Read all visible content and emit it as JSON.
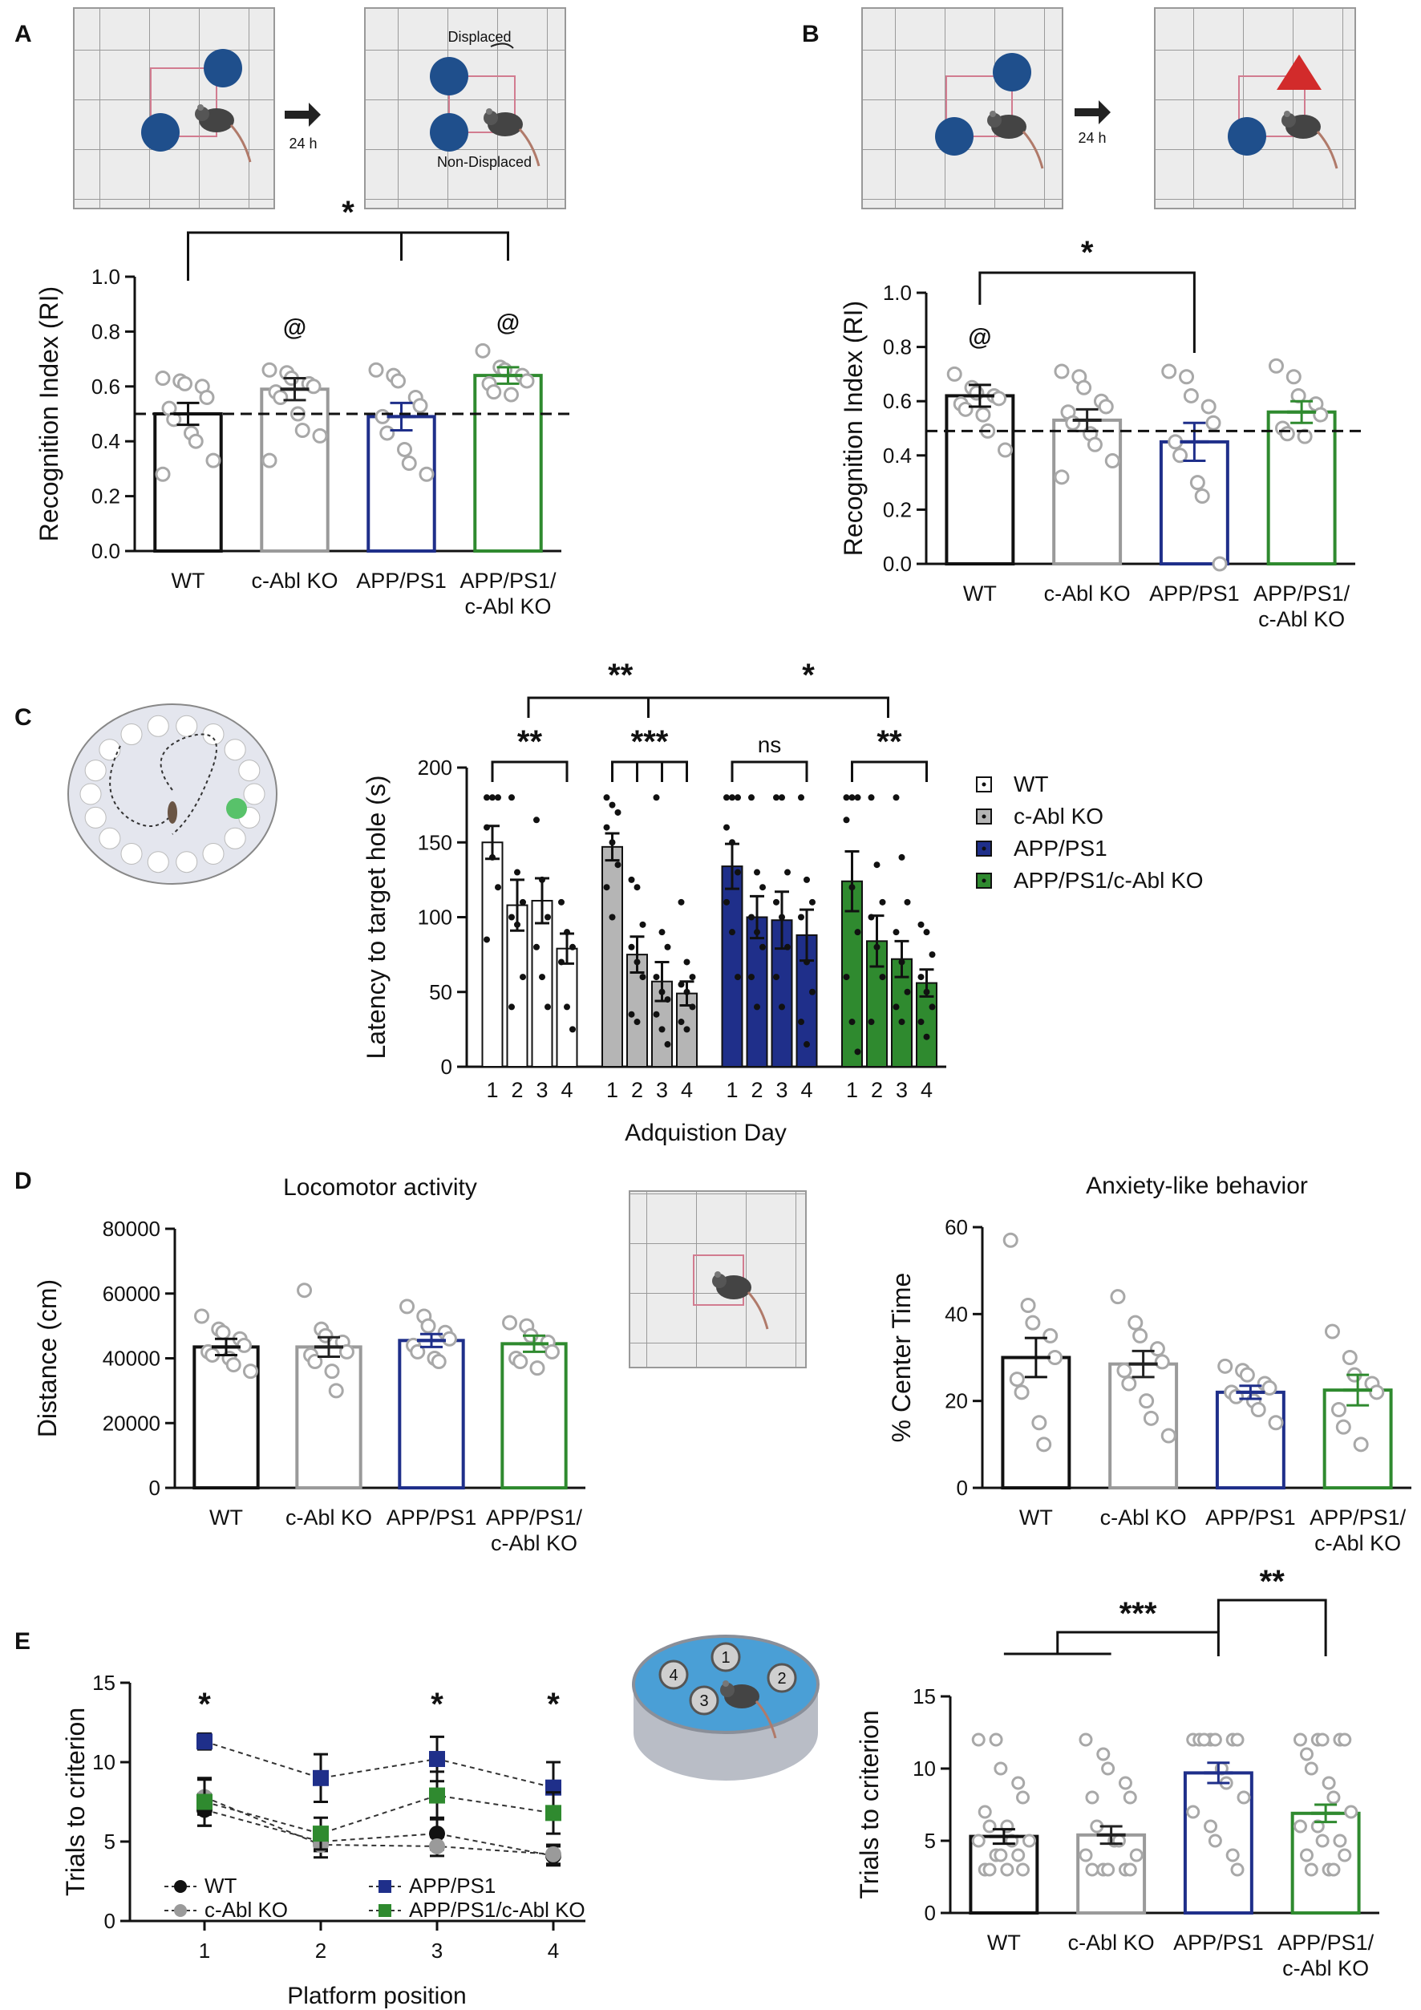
{
  "panels": {
    "a": "A",
    "b": "B",
    "c": "C",
    "d": "D",
    "e": "E"
  },
  "schematics": {
    "a_displaced": "Displaced",
    "a_nondisplaced": "Non-Displaced",
    "a_delay": "24 h",
    "b_delay": "24 h",
    "e_platforms": [
      "1",
      "2",
      "3",
      "4"
    ]
  },
  "chart_data": [
    {
      "id": "A",
      "type": "bar",
      "categories": [
        "WT",
        "c-Abl KO",
        "APP/PS1",
        "APP/PS1/\nc-Abl KO"
      ],
      "values": [
        0.5,
        0.59,
        0.49,
        0.64
      ],
      "sem": [
        0.04,
        0.04,
        0.05,
        0.03
      ],
      "colors": [
        "#111111",
        "#9a9a9a",
        "#1f2f8a",
        "#2f8a2f"
      ],
      "points": [
        [
          0.63,
          0.62,
          0.61,
          0.6,
          0.56,
          0.52,
          0.48,
          0.43,
          0.4,
          0.33,
          0.28
        ],
        [
          0.66,
          0.65,
          0.63,
          0.61,
          0.6,
          0.58,
          0.56,
          0.5,
          0.44,
          0.42,
          0.33
        ],
        [
          0.66,
          0.64,
          0.62,
          0.56,
          0.53,
          0.49,
          0.43,
          0.37,
          0.32,
          0.28
        ],
        [
          0.73,
          0.67,
          0.66,
          0.64,
          0.62,
          0.61,
          0.58,
          0.57
        ]
      ],
      "ylabel": "Recognition  Index (RI)",
      "ylim": [
        0,
        1.0
      ],
      "yticks": [
        "0.0",
        "0.2",
        "0.4",
        "0.6",
        "0.8",
        "1.0"
      ],
      "reference_line": 0.5,
      "annotations": {
        "star": "*",
        "at": "@"
      }
    },
    {
      "id": "B",
      "type": "bar",
      "categories": [
        "WT",
        "c-Abl KO",
        "APP/PS1",
        "APP/PS1/\nc-Abl KO"
      ],
      "values": [
        0.62,
        0.53,
        0.45,
        0.56
      ],
      "sem": [
        0.04,
        0.04,
        0.07,
        0.04
      ],
      "colors": [
        "#111111",
        "#9a9a9a",
        "#1f2f8a",
        "#2f8a2f"
      ],
      "points": [
        [
          0.7,
          0.65,
          0.63,
          0.62,
          0.61,
          0.59,
          0.57,
          0.55,
          0.49,
          0.42
        ],
        [
          0.71,
          0.69,
          0.65,
          0.6,
          0.58,
          0.56,
          0.52,
          0.48,
          0.44,
          0.38,
          0.32
        ],
        [
          0.71,
          0.69,
          0.62,
          0.58,
          0.52,
          0.45,
          0.4,
          0.3,
          0.25,
          0.0
        ],
        [
          0.73,
          0.69,
          0.62,
          0.59,
          0.55,
          0.5,
          0.48,
          0.47
        ]
      ],
      "ylabel": "Recognition  Index (RI)",
      "ylim": [
        0,
        1.0
      ],
      "yticks": [
        "0.0",
        "0.2",
        "0.4",
        "0.6",
        "0.8",
        "1.0"
      ],
      "reference_line": 0.49,
      "annotations": {
        "star": "*",
        "at": "@"
      }
    },
    {
      "id": "C",
      "type": "bar",
      "groups": [
        "WT",
        "c-Abl KO",
        "APP/PS1",
        "APP/PS1/c-Abl KO"
      ],
      "days": [
        "1",
        "2",
        "3",
        "4"
      ],
      "values": [
        [
          150,
          108,
          111,
          79
        ],
        [
          147,
          75,
          57,
          49
        ],
        [
          134,
          100,
          98,
          88
        ],
        [
          124,
          84,
          72,
          56
        ]
      ],
      "sem": [
        [
          11,
          17,
          15,
          10
        ],
        [
          9,
          12,
          13,
          8
        ],
        [
          15,
          14,
          19,
          17
        ],
        [
          20,
          17,
          12,
          9
        ]
      ],
      "points": [
        [
          [
            180,
            180,
            180,
            160,
            140,
            120,
            85
          ],
          [
            180,
            130,
            110,
            100,
            95,
            60,
            40
          ],
          [
            165,
            125,
            100,
            80,
            60,
            40
          ],
          [
            110,
            90,
            80,
            70,
            40,
            25
          ]
        ],
        [
          [
            180,
            175,
            170,
            160,
            150,
            135,
            120,
            100
          ],
          [
            125,
            120,
            95,
            80,
            70,
            60,
            35,
            30
          ],
          [
            180,
            90,
            80,
            60,
            50,
            45,
            35,
            25,
            15
          ],
          [
            110,
            70,
            60,
            55,
            50,
            40,
            30,
            25
          ]
        ],
        [
          [
            180,
            180,
            180,
            160,
            150,
            130,
            110,
            90,
            60
          ],
          [
            180,
            130,
            120,
            100,
            90,
            80,
            60,
            40
          ],
          [
            180,
            180,
            130,
            110,
            100,
            80,
            60,
            40
          ],
          [
            180,
            125,
            110,
            100,
            70,
            50,
            30,
            15
          ]
        ],
        [
          [
            180,
            180,
            180,
            165,
            120,
            90,
            60,
            30,
            10
          ],
          [
            180,
            135,
            110,
            100,
            80,
            60,
            30
          ],
          [
            180,
            140,
            110,
            90,
            70,
            50,
            40,
            30
          ],
          [
            95,
            90,
            75,
            60,
            50,
            40,
            30,
            20
          ]
        ]
      ],
      "colors": [
        "#ffffff",
        "#b5b5b5",
        "#1f2f8a",
        "#2f8a2f"
      ],
      "legend": [
        "WT",
        "c-Abl KO",
        "APP/PS1",
        "APP/PS1/c-Abl KO"
      ],
      "ylabel": "Latency to target hole (s)",
      "xlabel": "Adquistion Day",
      "ylim": [
        0,
        200
      ],
      "yticks": [
        "0",
        "50",
        "100",
        "150",
        "200"
      ],
      "annotations": {
        "top_left": "**",
        "top_right": "*",
        "g1": "**",
        "g2": "***",
        "g3": "ns",
        "g4": "**"
      }
    },
    {
      "id": "D1",
      "type": "bar",
      "title": "Locomotor activity",
      "categories": [
        "WT",
        "c-Abl KO",
        "APP/PS1",
        "APP/PS1/\nc-Abl KO"
      ],
      "values": [
        43500,
        43500,
        45500,
        44500
      ],
      "sem": [
        2500,
        3000,
        2000,
        2500
      ],
      "colors": [
        "#111111",
        "#9a9a9a",
        "#1f2f8a",
        "#2f8a2f"
      ],
      "points": [
        [
          53000,
          49000,
          48000,
          46000,
          44000,
          42000,
          41000,
          40000,
          38000,
          36000
        ],
        [
          61000,
          49000,
          47000,
          45000,
          42000,
          41000,
          39000,
          36000,
          30000
        ],
        [
          56000,
          53000,
          50000,
          48000,
          46000,
          44000,
          42000,
          40000,
          39000
        ],
        [
          51000,
          50000,
          47000,
          45000,
          42000,
          40000,
          39000,
          37000
        ]
      ],
      "ylabel": "Distance (cm)",
      "ylim": [
        0,
        80000
      ],
      "yticks": [
        "0",
        "20000",
        "40000",
        "60000",
        "80000"
      ]
    },
    {
      "id": "D2",
      "type": "bar",
      "title": "Anxiety-like behavior",
      "categories": [
        "WT",
        "c-Abl KO",
        "APP/PS1",
        "APP/PS1/\nc-Abl KO"
      ],
      "values": [
        30,
        28.5,
        22,
        22.5
      ],
      "sem": [
        4.5,
        3,
        1.5,
        3.5
      ],
      "colors": [
        "#111111",
        "#9a9a9a",
        "#1f2f8a",
        "#2f8a2f"
      ],
      "points": [
        [
          57,
          42,
          38,
          35,
          30,
          25,
          22,
          15,
          10
        ],
        [
          44,
          38,
          35,
          32,
          29,
          27,
          24,
          20,
          16,
          12
        ],
        [
          28,
          27,
          26,
          24,
          23,
          22,
          21,
          20,
          18,
          15
        ],
        [
          36,
          30,
          26,
          24,
          22,
          18,
          14,
          10
        ]
      ],
      "ylabel": "% Center Time",
      "ylim": [
        0,
        60
      ],
      "yticks": [
        "0",
        "20",
        "40",
        "60"
      ]
    },
    {
      "id": "E1",
      "type": "line",
      "x": [
        1,
        2,
        3,
        4
      ],
      "series": [
        {
          "name": "WT",
          "values": [
            7.0,
            5.0,
            5.5,
            4.1
          ],
          "sem": [
            1.0,
            0.6,
            1.0,
            0.6
          ],
          "color": "#111111",
          "marker": "circle"
        },
        {
          "name": "c-Abl KO",
          "values": [
            7.8,
            4.8,
            4.7,
            4.2
          ],
          "sem": [
            1.1,
            0.8,
            0.6,
            0.6
          ],
          "color": "#9a9a9a",
          "marker": "circle"
        },
        {
          "name": "APP/PS1",
          "values": [
            11.3,
            9.0,
            10.2,
            8.4
          ],
          "sem": [
            0.5,
            1.5,
            1.4,
            1.6
          ],
          "color": "#1f2f8a",
          "marker": "square"
        },
        {
          "name": "APP/PS1/c-Abl KO",
          "values": [
            7.5,
            5.5,
            7.9,
            6.8
          ],
          "sem": [
            1.5,
            1.0,
            1.5,
            1.3
          ],
          "color": "#2f8a2f",
          "marker": "square"
        }
      ],
      "xlabel": "Platform position",
      "ylabel": "Trials to criterion",
      "ylim": [
        0,
        15
      ],
      "yticks": [
        "0",
        "5",
        "10",
        "15"
      ],
      "xticks": [
        "1",
        "2",
        "3",
        "4"
      ],
      "stars": [
        "*",
        "*",
        "*"
      ]
    },
    {
      "id": "E2",
      "type": "bar",
      "categories": [
        "WT",
        "c-Abl KO",
        "APP/PS1",
        "APP/PS1/\nc-Abl KO"
      ],
      "values": [
        5.3,
        5.4,
        9.7,
        6.9
      ],
      "sem": [
        0.5,
        0.6,
        0.7,
        0.6
      ],
      "colors": [
        "#111111",
        "#9a9a9a",
        "#1f2f8a",
        "#2f8a2f"
      ],
      "points": [
        [
          12,
          12,
          10,
          9,
          8,
          7,
          6,
          6,
          5,
          5,
          5,
          4,
          4,
          4,
          3,
          3,
          3,
          3
        ],
        [
          12,
          11,
          10,
          9,
          8,
          8,
          6,
          5,
          5,
          4,
          4,
          3,
          3,
          3,
          3,
          3
        ],
        [
          12,
          12,
          12,
          12,
          12,
          12,
          12,
          10,
          9,
          8,
          7,
          6,
          5,
          4,
          3
        ],
        [
          12,
          12,
          12,
          12,
          12,
          11,
          10,
          9,
          8,
          7,
          6,
          6,
          5,
          5,
          4,
          4,
          3,
          3,
          3
        ]
      ],
      "ylabel": "Trials to criterion",
      "ylim": [
        0,
        15
      ],
      "yticks": [
        "0",
        "5",
        "10",
        "15"
      ],
      "annotations": {
        "left": "***",
        "right": "**"
      }
    }
  ]
}
